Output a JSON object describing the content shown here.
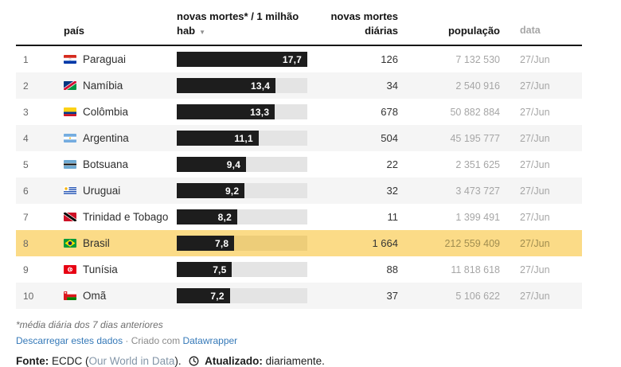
{
  "table": {
    "columns": {
      "country": "país",
      "bar_line1": "novas mortes* / 1 milhão",
      "bar_line2": "hab",
      "daily_line1": "novas mortes",
      "daily_line2": "diárias",
      "population": "população",
      "date": "data"
    },
    "sort_icon": "sort-desc-arrow",
    "sort_icon_glyph": "▼",
    "bar_max": 17.7,
    "rows": [
      {
        "rank": "1",
        "flag": "paraguay",
        "country": "Paraguai",
        "value": "17,7",
        "value_num": 17.7,
        "daily": "126",
        "population": "7 132 530",
        "date": "27/Jun",
        "highlight": false
      },
      {
        "rank": "2",
        "flag": "namibia",
        "country": "Namíbia",
        "value": "13,4",
        "value_num": 13.4,
        "daily": "34",
        "population": "2 540 916",
        "date": "27/Jun",
        "highlight": false
      },
      {
        "rank": "3",
        "flag": "colombia",
        "country": "Colômbia",
        "value": "13,3",
        "value_num": 13.3,
        "daily": "678",
        "population": "50 882 884",
        "date": "27/Jun",
        "highlight": false
      },
      {
        "rank": "4",
        "flag": "argentina",
        "country": "Argentina",
        "value": "11,1",
        "value_num": 11.1,
        "daily": "504",
        "population": "45 195 777",
        "date": "27/Jun",
        "highlight": false
      },
      {
        "rank": "5",
        "flag": "botswana",
        "country": "Botsuana",
        "value": "9,4",
        "value_num": 9.4,
        "daily": "22",
        "population": "2 351 625",
        "date": "27/Jun",
        "highlight": false
      },
      {
        "rank": "6",
        "flag": "uruguay",
        "country": "Uruguai",
        "value": "9,2",
        "value_num": 9.2,
        "daily": "32",
        "population": "3 473 727",
        "date": "27/Jun",
        "highlight": false
      },
      {
        "rank": "7",
        "flag": "trinidad",
        "country": "Trinidad e Tobago",
        "value": "8,2",
        "value_num": 8.2,
        "daily": "11",
        "population": "1 399 491",
        "date": "27/Jun",
        "highlight": false
      },
      {
        "rank": "8",
        "flag": "brazil",
        "country": "Brasil",
        "value": "7,8",
        "value_num": 7.8,
        "daily": "1 664",
        "population": "212 559 409",
        "date": "27/Jun",
        "highlight": true
      },
      {
        "rank": "9",
        "flag": "tunisia",
        "country": "Tunísia",
        "value": "7,5",
        "value_num": 7.5,
        "daily": "88",
        "population": "11 818 618",
        "date": "27/Jun",
        "highlight": false
      },
      {
        "rank": "10",
        "flag": "oman",
        "country": "Omã",
        "value": "7,2",
        "value_num": 7.2,
        "daily": "37",
        "population": "5 106 622",
        "date": "27/Jun",
        "highlight": false
      }
    ]
  },
  "footer": {
    "footnote": "*média diária dos 7 dias anteriores",
    "download_link": "Descarregar estes dados",
    "separator": "·",
    "created_with": "Criado com",
    "datawrapper_link": "Datawrapper",
    "source_label": "Fonte:",
    "source_name": "ECDC",
    "paren_open": "(",
    "source_link": "Our World in Data",
    "paren_close": ").",
    "updated_icon": "clock-icon",
    "updated_label": "Atualizado:",
    "updated_value": "diariamente."
  },
  "colors": {
    "bar": "#1d1d1d",
    "bar_track": "#e4e4e4",
    "zebra": "#f5f5f5",
    "highlight_row": "#fbdb87",
    "highlight_track": "#edcd79",
    "link_blue": "#3579b8",
    "muted_text": "#a6a6a6"
  },
  "chart_data": {
    "type": "table",
    "title": "",
    "columns": [
      "país",
      "novas mortes* / 1 milhão hab",
      "novas mortes diárias",
      "população",
      "data"
    ],
    "sorted_by": "novas mortes* / 1 milhão hab (desc)",
    "bar_column": "novas mortes* / 1 milhão hab",
    "bar_max": 17.7,
    "highlighted_row": "Brasil",
    "rows": [
      [
        "Paraguai",
        17.7,
        126,
        7132530,
        "27/Jun"
      ],
      [
        "Namíbia",
        13.4,
        34,
        2540916,
        "27/Jun"
      ],
      [
        "Colômbia",
        13.3,
        678,
        50882884,
        "27/Jun"
      ],
      [
        "Argentina",
        11.1,
        504,
        45195777,
        "27/Jun"
      ],
      [
        "Botsuana",
        9.4,
        22,
        2351625,
        "27/Jun"
      ],
      [
        "Uruguai",
        9.2,
        32,
        3473727,
        "27/Jun"
      ],
      [
        "Trinidad e Tobago",
        8.2,
        11,
        1399491,
        "27/Jun"
      ],
      [
        "Brasil",
        7.8,
        1664,
        212559409,
        "27/Jun"
      ],
      [
        "Tunísia",
        7.5,
        88,
        11818618,
        "27/Jun"
      ],
      [
        "Omã",
        7.2,
        37,
        5106622,
        "27/Jun"
      ]
    ]
  }
}
